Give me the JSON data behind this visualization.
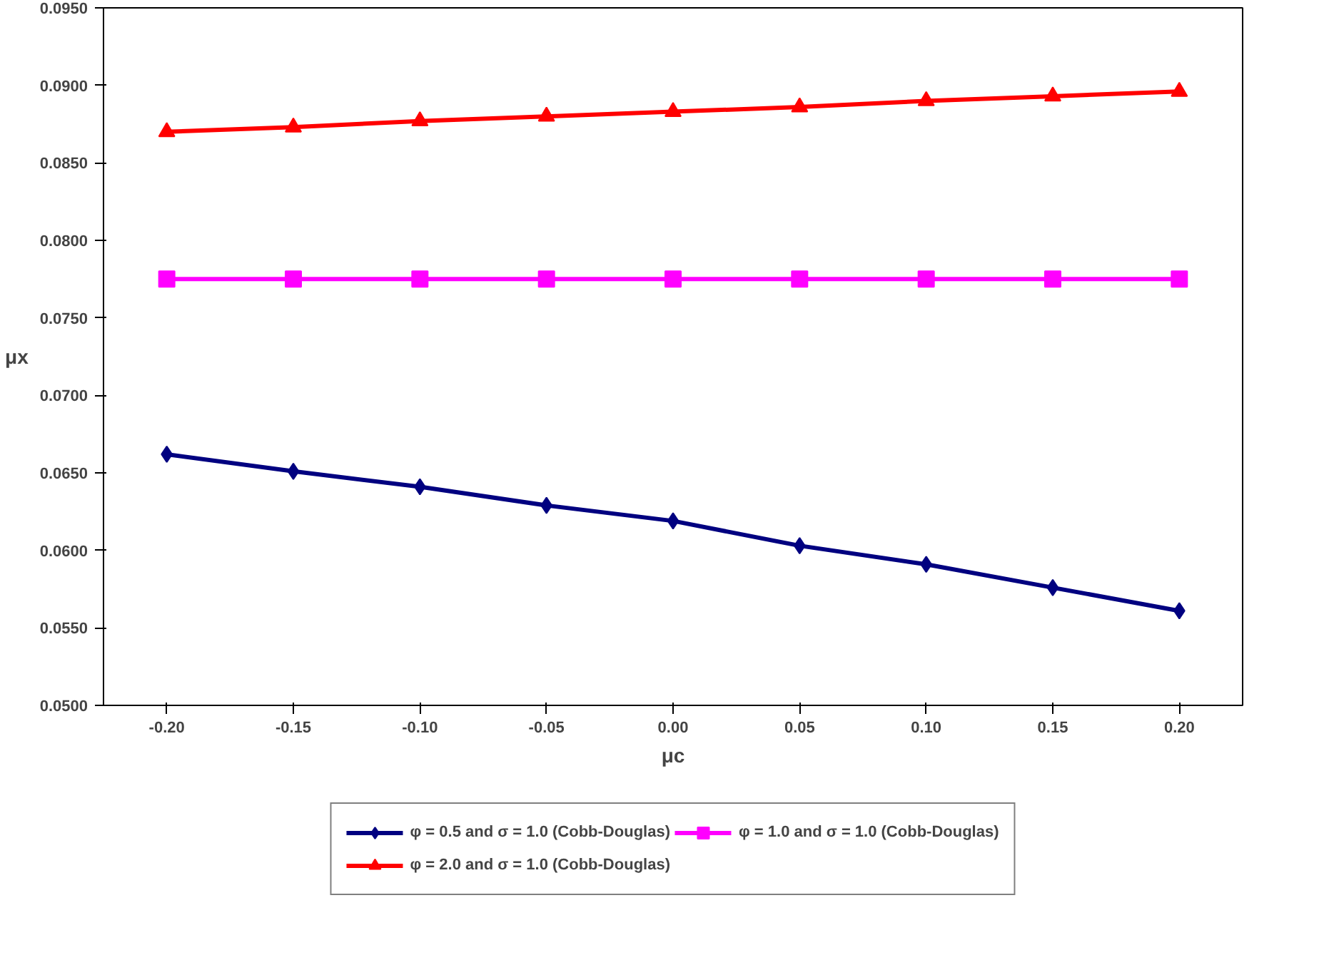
{
  "chart_data": {
    "type": "line",
    "xlabel": "μc",
    "ylabel": "μx",
    "x": [
      -0.2,
      -0.15,
      -0.1,
      -0.05,
      0.0,
      0.05,
      0.1,
      0.15,
      0.2
    ],
    "xlim": [
      -0.225,
      0.225
    ],
    "xticks": [
      {
        "value": -0.2,
        "label": "-0.20"
      },
      {
        "value": -0.15,
        "label": "-0.15"
      },
      {
        "value": -0.1,
        "label": "-0.10"
      },
      {
        "value": -0.05,
        "label": "-0.05"
      },
      {
        "value": 0,
        "label": "0.00"
      },
      {
        "value": 0.05,
        "label": "0.05"
      },
      {
        "value": 0.1,
        "label": "0.10"
      },
      {
        "value": 0.15,
        "label": "0.15"
      },
      {
        "value": 0.2,
        "label": "0.20"
      }
    ],
    "ylim": [
      0.05,
      0.095
    ],
    "yticks": [
      {
        "value": 0.05,
        "label": "0.0500"
      },
      {
        "value": 0.055,
        "label": "0.0550"
      },
      {
        "value": 0.06,
        "label": "0.0600"
      },
      {
        "value": 0.065,
        "label": "0.0650"
      },
      {
        "value": 0.07,
        "label": "0.0700"
      },
      {
        "value": 0.075,
        "label": "0.0750"
      },
      {
        "value": 0.08,
        "label": "0.0800"
      },
      {
        "value": 0.085,
        "label": "0.0850"
      },
      {
        "value": 0.09,
        "label": "0.0900"
      },
      {
        "value": 0.095,
        "label": "0.0950"
      }
    ],
    "legend": "bottom",
    "series": [
      {
        "name": "φ = 0.5 and σ = 1.0 (Cobb-Douglas)",
        "color": "#000080",
        "marker": "diamond",
        "values": [
          0.0662,
          0.0651,
          0.0641,
          0.0629,
          0.0619,
          0.0603,
          0.0591,
          0.0576,
          0.0561
        ]
      },
      {
        "name": "φ = 1.0 and σ = 1.0 (Cobb-Douglas)",
        "color": "#ff00ff",
        "marker": "square",
        "values": [
          0.0775,
          0.0775,
          0.0775,
          0.0775,
          0.0775,
          0.0775,
          0.0775,
          0.0775,
          0.0775
        ]
      },
      {
        "name": "φ = 2.0 and σ = 1.0 (Cobb-Douglas)",
        "color": "#ff0000",
        "marker": "triangle",
        "values": [
          0.087,
          0.0873,
          0.0877,
          0.088,
          0.0883,
          0.0886,
          0.089,
          0.0893,
          0.0896
        ]
      }
    ]
  }
}
